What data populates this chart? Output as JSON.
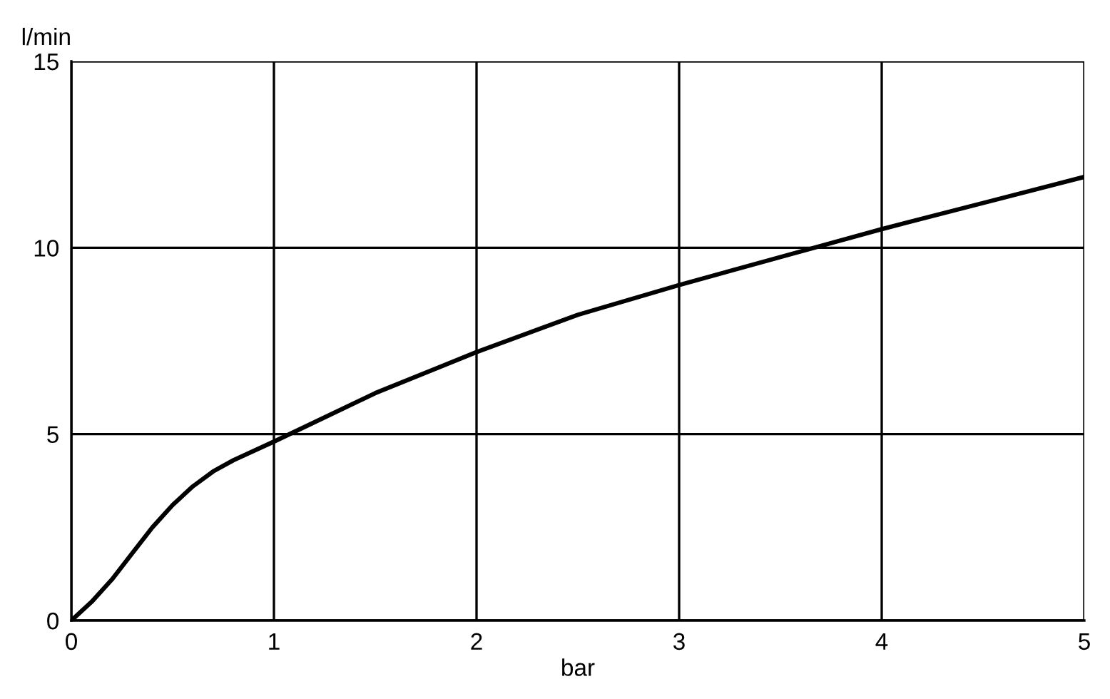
{
  "chart_data": {
    "type": "line",
    "xlabel": "bar",
    "ylabel": "l/min",
    "series": [
      {
        "color": "#000000",
        "x": [
          0,
          0.1,
          0.2,
          0.3,
          0.4,
          0.5,
          0.6,
          0.7,
          0.8,
          1.0,
          1.5,
          2.0,
          2.5,
          3.0,
          3.5,
          4.0,
          4.5,
          5.0
        ],
        "values": [
          0,
          0.5,
          1.1,
          1.8,
          2.5,
          3.1,
          3.6,
          4.0,
          4.3,
          4.8,
          6.1,
          7.2,
          8.2,
          9.0,
          9.75,
          10.5,
          11.2,
          11.9
        ]
      }
    ],
    "xlim": [
      0,
      5
    ],
    "ylim": [
      0,
      15
    ],
    "xticks": [
      0,
      1,
      2,
      3,
      4,
      5
    ],
    "yticks": [
      0,
      5,
      10,
      15
    ],
    "grid": true,
    "legend": false,
    "marker": "none",
    "line_style": "solid"
  }
}
